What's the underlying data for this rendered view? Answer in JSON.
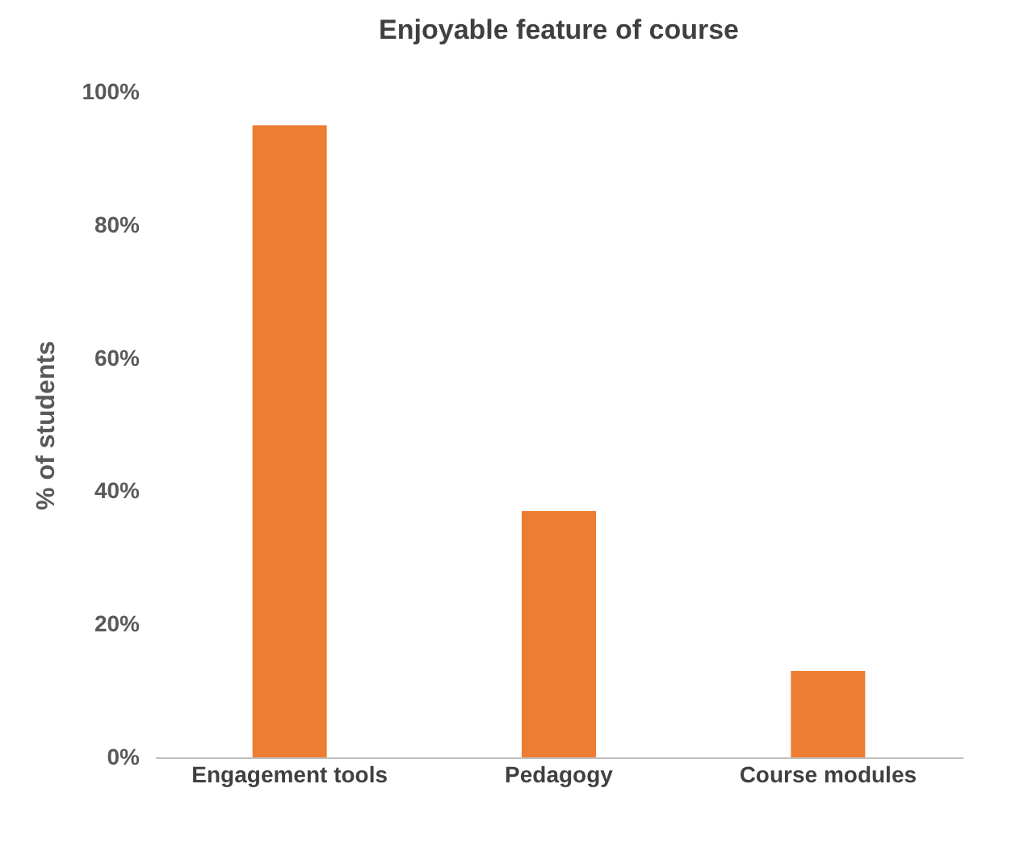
{
  "chart_data": {
    "type": "bar",
    "title": "Enjoyable feature of course",
    "ylabel": "% of students",
    "categories": [
      "Engagement tools",
      "Pedagogy",
      "Course modules"
    ],
    "values": [
      95,
      37,
      13
    ],
    "color": "#ed7d31",
    "ylim": [
      0,
      100
    ],
    "yticks": [
      {
        "value": 0,
        "label": "0%"
      },
      {
        "value": 20,
        "label": "20%"
      },
      {
        "value": 40,
        "label": "40%"
      },
      {
        "value": 60,
        "label": "60%"
      },
      {
        "value": 80,
        "label": "80%"
      },
      {
        "value": 100,
        "label": "100%"
      }
    ],
    "grid": false
  }
}
